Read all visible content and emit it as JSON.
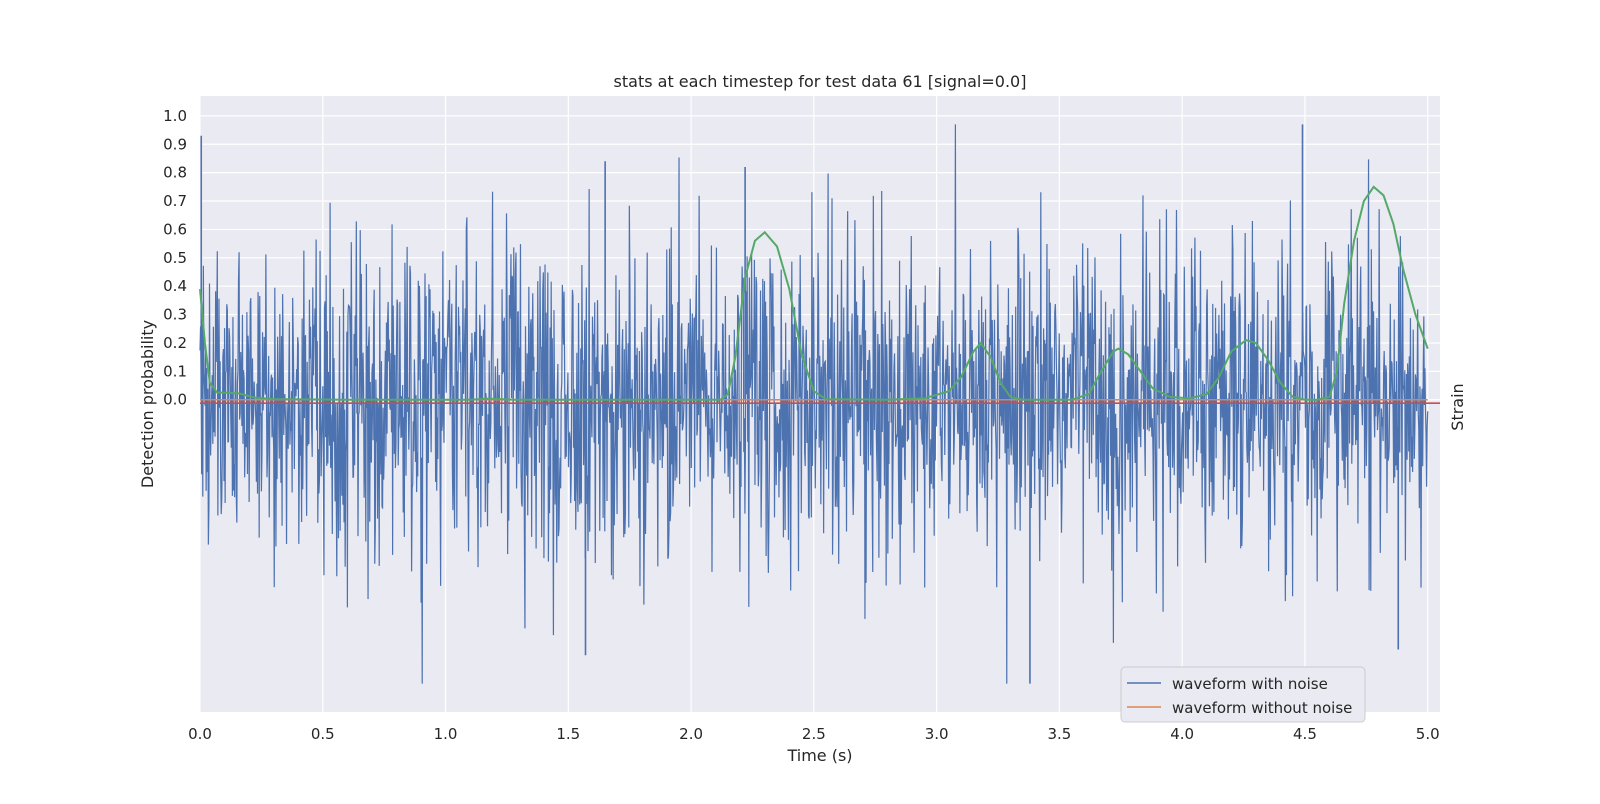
{
  "chart_data": {
    "type": "line",
    "title": "stats at each timestep for test data 61 [signal=0.0]",
    "xlabel": "Time (s)",
    "ylabel": "Detection probability",
    "ylabel_right": "Strain",
    "xlim": [
      0.0,
      5.05
    ],
    "ylim": [
      -1.1,
      1.07
    ],
    "x_ticks": [
      "0.0",
      "0.5",
      "1.0",
      "1.5",
      "2.0",
      "2.5",
      "3.0",
      "3.5",
      "4.0",
      "4.5",
      "5.0"
    ],
    "y_ticks": [
      "0.0",
      "0.1",
      "0.2",
      "0.3",
      "0.4",
      "0.5",
      "0.6",
      "0.7",
      "0.8",
      "0.9",
      "1.0"
    ],
    "grid": true,
    "legend_position": "lower-right",
    "noise_series": {
      "name": "waveform with noise",
      "color": "#4c72b0",
      "x_start": 0.0,
      "x_end": 5.0,
      "approx_max": 0.97,
      "approx_min": -1.0,
      "peaks": [
        {
          "x": 0.005,
          "y": 0.93
        },
        {
          "x": 1.65,
          "y": 0.84
        },
        {
          "x": 2.22,
          "y": 0.82
        },
        {
          "x": 4.49,
          "y": 0.97
        },
        {
          "x": 3.38,
          "y": -1.0
        },
        {
          "x": 1.57,
          "y": -0.9
        },
        {
          "x": 4.88,
          "y": -0.88
        }
      ]
    },
    "clean_series": {
      "name": "waveform without noise",
      "color": "#dd8452",
      "value": 0.0
    },
    "probability_series": {
      "color": "#55a868",
      "points": [
        [
          0.0,
          0.39
        ],
        [
          0.02,
          0.2
        ],
        [
          0.04,
          0.06
        ],
        [
          0.07,
          0.025
        ],
        [
          0.11,
          0.025
        ],
        [
          0.16,
          0.022
        ],
        [
          0.22,
          0.008
        ],
        [
          0.3,
          0.002
        ],
        [
          0.6,
          0.0
        ],
        [
          1.1,
          0.0
        ],
        [
          1.18,
          0.004
        ],
        [
          1.28,
          0.0
        ],
        [
          2.0,
          0.0
        ],
        [
          2.12,
          0.0
        ],
        [
          2.15,
          0.02
        ],
        [
          2.18,
          0.15
        ],
        [
          2.22,
          0.43
        ],
        [
          2.26,
          0.56
        ],
        [
          2.3,
          0.59
        ],
        [
          2.35,
          0.54
        ],
        [
          2.4,
          0.39
        ],
        [
          2.45,
          0.16
        ],
        [
          2.5,
          0.03
        ],
        [
          2.55,
          0.002
        ],
        [
          2.8,
          0.0
        ],
        [
          2.95,
          0.005
        ],
        [
          3.05,
          0.03
        ],
        [
          3.1,
          0.08
        ],
        [
          3.15,
          0.17
        ],
        [
          3.18,
          0.2
        ],
        [
          3.22,
          0.15
        ],
        [
          3.26,
          0.06
        ],
        [
          3.3,
          0.01
        ],
        [
          3.35,
          0.0
        ],
        [
          3.55,
          0.0
        ],
        [
          3.62,
          0.02
        ],
        [
          3.67,
          0.1
        ],
        [
          3.72,
          0.17
        ],
        [
          3.74,
          0.18
        ],
        [
          3.78,
          0.16
        ],
        [
          3.83,
          0.1
        ],
        [
          3.88,
          0.04
        ],
        [
          3.95,
          0.01
        ],
        [
          4.03,
          0.005
        ],
        [
          4.1,
          0.02
        ],
        [
          4.15,
          0.08
        ],
        [
          4.2,
          0.17
        ],
        [
          4.26,
          0.21
        ],
        [
          4.3,
          0.2
        ],
        [
          4.35,
          0.14
        ],
        [
          4.4,
          0.06
        ],
        [
          4.45,
          0.01
        ],
        [
          4.5,
          0.0
        ],
        [
          4.55,
          0.0
        ],
        [
          4.6,
          0.01
        ],
        [
          4.63,
          0.1
        ],
        [
          4.66,
          0.34
        ],
        [
          4.7,
          0.56
        ],
        [
          4.74,
          0.7
        ],
        [
          4.78,
          0.75
        ],
        [
          4.82,
          0.72
        ],
        [
          4.86,
          0.62
        ],
        [
          4.9,
          0.46
        ],
        [
          4.95,
          0.3
        ],
        [
          5.0,
          0.18
        ]
      ]
    },
    "threshold_line": {
      "color": "#c44e52",
      "value": -0.012
    }
  }
}
